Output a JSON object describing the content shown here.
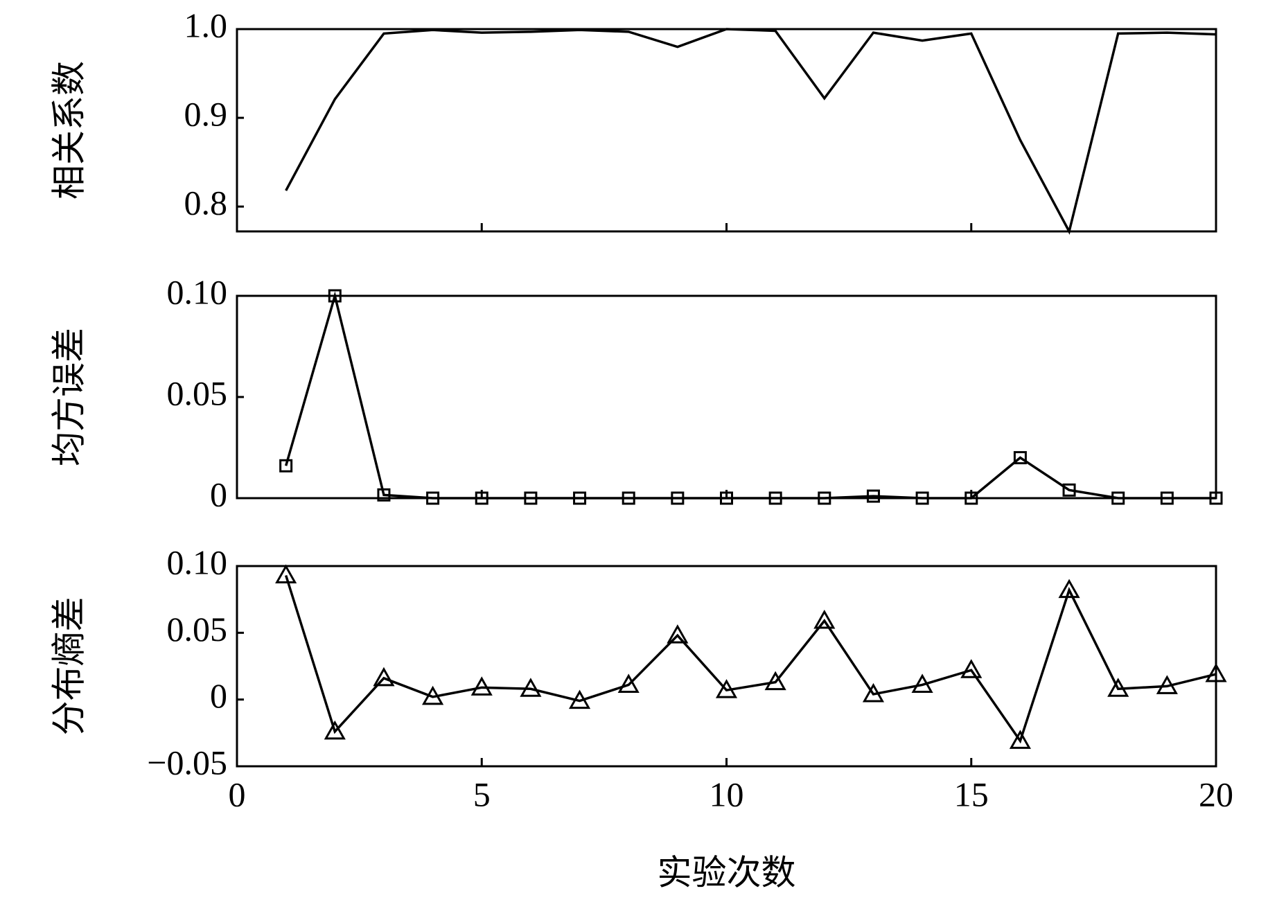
{
  "chart_data": [
    {
      "type": "line",
      "ylabel": "相关系数",
      "marker": "none",
      "color": "#000000",
      "x": [
        1,
        2,
        3,
        4,
        5,
        6,
        7,
        8,
        9,
        10,
        11,
        12,
        13,
        14,
        15,
        16,
        17,
        18,
        19,
        20
      ],
      "values": [
        0.818,
        0.921,
        0.995,
        0.999,
        0.996,
        0.997,
        0.999,
        0.997,
        0.98,
        1.0,
        0.998,
        0.922,
        0.996,
        0.987,
        0.995,
        0.875,
        0.772,
        0.995,
        0.996,
        0.994
      ],
      "xlim": [
        0,
        20
      ],
      "xticks": [
        0,
        5,
        10,
        15,
        20
      ],
      "show_xtick_labels": false,
      "ylim": [
        0.772,
        1.0
      ],
      "yticks": [
        0.8,
        0.9,
        {
          "value": 1.0,
          "label": "1.0"
        }
      ]
    },
    {
      "type": "line",
      "ylabel": "均方误差",
      "marker": "square",
      "color": "#000000",
      "x": [
        1,
        2,
        3,
        4,
        5,
        6,
        7,
        8,
        9,
        10,
        11,
        12,
        13,
        14,
        15,
        16,
        17,
        18,
        19,
        20
      ],
      "values": [
        0.016,
        0.1,
        0.0016,
        0,
        0,
        0,
        0,
        0,
        0,
        0,
        0,
        0,
        0.001,
        0,
        0,
        0.02,
        0.004,
        0,
        0,
        0
      ],
      "xlim": [
        0,
        20
      ],
      "xticks": [
        0,
        5,
        10,
        15,
        20
      ],
      "show_xtick_labels": false,
      "ylim": [
        0,
        0.1
      ],
      "yticks": [
        0,
        0.05,
        {
          "value": 0.1,
          "label": "0.10"
        }
      ]
    },
    {
      "type": "line",
      "ylabel": "分布熵差",
      "xlabel": "实验次数",
      "marker": "triangle",
      "color": "#000000",
      "x": [
        1,
        2,
        3,
        4,
        5,
        6,
        7,
        8,
        9,
        10,
        11,
        12,
        13,
        14,
        15,
        16,
        17,
        18,
        19,
        20
      ],
      "values": [
        0.093,
        -0.024,
        0.016,
        0.002,
        0.009,
        0.008,
        -0.001,
        0.011,
        0.048,
        0.007,
        0.013,
        0.059,
        0.004,
        0.011,
        0.022,
        -0.031,
        0.082,
        0.008,
        0.01,
        0.019
      ],
      "xlim": [
        0,
        20
      ],
      "xticks": [
        0,
        5,
        10,
        15,
        20
      ],
      "show_xtick_labels": true,
      "ylim": [
        -0.05,
        0.1
      ],
      "yticks": [
        {
          "value": -0.05,
          "label": "−0.05"
        },
        0,
        0.05,
        {
          "value": 0.1,
          "label": "0.10"
        }
      ]
    }
  ]
}
